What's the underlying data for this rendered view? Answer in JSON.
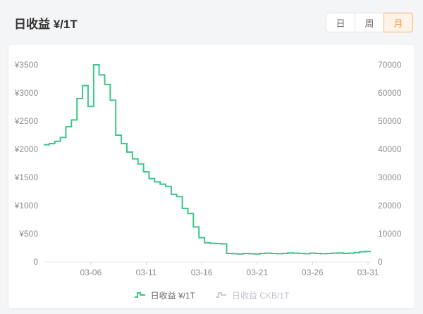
{
  "header": {
    "title": "日收益 ¥/1T",
    "periods": [
      {
        "label": "日",
        "selected": false
      },
      {
        "label": "周",
        "selected": false
      },
      {
        "label": "月",
        "selected": true
      }
    ]
  },
  "legend": [
    {
      "label": "日收益 ¥/1T",
      "color": "#3cc68a",
      "active": true
    },
    {
      "label": "日收益 CKB/1T",
      "color": "#c9cdd1",
      "active": false
    }
  ],
  "colors": {
    "line_green": "#3cc68a",
    "selected_orange": "#f7913d",
    "axis_text": "#8c8c8c",
    "card_bg": "#ffffff",
    "page_bg": "#f4f5f7"
  },
  "chart_data": {
    "type": "line",
    "step": true,
    "title": "日收益 ¥/1T",
    "grid": false,
    "legend_position": "bottom",
    "left_axis": {
      "min": 0,
      "max": 3500,
      "tick_labels": [
        "0",
        "¥500",
        "¥1000",
        "¥1500",
        "¥2000",
        "¥2500",
        "¥3000",
        "¥3500"
      ]
    },
    "right_axis": {
      "min": 0,
      "max": 70000,
      "tick_labels": [
        "0",
        "10000",
        "20000",
        "30000",
        "40000",
        "50000",
        "60000",
        "70000"
      ]
    },
    "x_ticks": [
      {
        "label": "03-06",
        "index": 8.5
      },
      {
        "label": "03-11",
        "index": 18.5
      },
      {
        "label": "03-16",
        "index": 28.5
      },
      {
        "label": "03-21",
        "index": 38.5
      },
      {
        "label": "03-26",
        "index": 48.5
      },
      {
        "label": "03-31",
        "index": 58.5
      }
    ],
    "x_range": [
      "03-02",
      "03-31"
    ],
    "points_per_day": 2,
    "series": [
      {
        "name": "日收益 ¥/1T",
        "color": "#3cc68a",
        "active": true,
        "values": [
          2080,
          2100,
          2140,
          2210,
          2400,
          2520,
          2900,
          3130,
          2760,
          3500,
          3320,
          3150,
          2870,
          2250,
          2100,
          1950,
          1830,
          1740,
          1600,
          1480,
          1420,
          1380,
          1340,
          1200,
          1160,
          950,
          860,
          620,
          430,
          340,
          330,
          325,
          320,
          150,
          145,
          140,
          150,
          145,
          140,
          150,
          155,
          150,
          145,
          150,
          160,
          155,
          150,
          145,
          155,
          150,
          145,
          150,
          155,
          160,
          150,
          155,
          165,
          180,
          185,
          185
        ]
      },
      {
        "name": "日收益 CKB/1T",
        "color": "#c9cdd1",
        "active": false,
        "values": []
      }
    ]
  }
}
